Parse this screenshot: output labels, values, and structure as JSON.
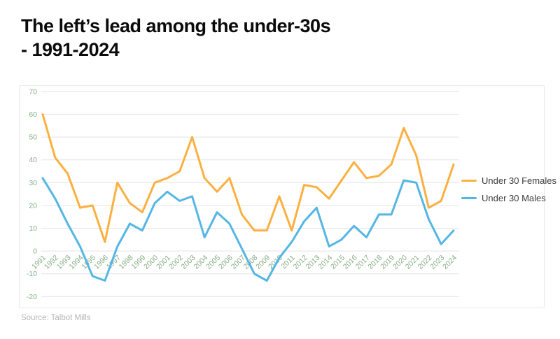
{
  "page": {
    "title_line1": "The left’s lead among the under-30s",
    "title_line2": "- 1991-2024",
    "source": "Source: Talbot Mills"
  },
  "legend": {
    "items": [
      {
        "label": "Under 30 Females",
        "color": "#FBB040"
      },
      {
        "label": "Under 30 Males",
        "color": "#54B6E4"
      }
    ]
  },
  "chart_data": {
    "type": "line",
    "title": "The left’s lead among the under-30s - 1991-2024",
    "x": [
      1991,
      1992,
      1993,
      1994,
      1995,
      1996,
      1997,
      1998,
      1999,
      2000,
      2001,
      2002,
      2003,
      2004,
      2005,
      2006,
      2007,
      2008,
      2009,
      2010,
      2011,
      2012,
      2013,
      2014,
      2015,
      2016,
      2017,
      2018,
      2019,
      2020,
      2021,
      2022,
      2023,
      2024
    ],
    "series": [
      {
        "name": "Under 30 Females",
        "color": "#FBB040",
        "values": [
          60,
          41,
          34,
          19,
          20,
          4,
          30,
          21,
          17,
          30,
          32,
          35,
          50,
          32,
          26,
          32,
          16,
          9,
          9,
          24,
          9,
          29,
          28,
          23,
          31,
          39,
          32,
          33,
          38,
          54,
          42,
          19,
          22,
          38
        ]
      },
      {
        "name": "Under 30 Males",
        "color": "#54B6E4",
        "values": [
          32,
          23,
          12,
          2,
          -11,
          -13,
          2,
          12,
          9,
          21,
          26,
          22,
          24,
          6,
          17,
          12,
          1,
          -10,
          -13,
          -3,
          4,
          13,
          19,
          2,
          5,
          11,
          6,
          16,
          16,
          31,
          30,
          14,
          3,
          9
        ]
      }
    ],
    "ylim": [
      -20,
      70
    ],
    "yticks": [
      70,
      60,
      50,
      40,
      30,
      20,
      10,
      0,
      -10,
      -20
    ],
    "grid": "horizontal",
    "legend_position": "right",
    "x_labels_rotated_deg": -45,
    "axis_label_color": "#85ad85",
    "gridline_color": "#e4e4e4",
    "line_width": 3
  }
}
